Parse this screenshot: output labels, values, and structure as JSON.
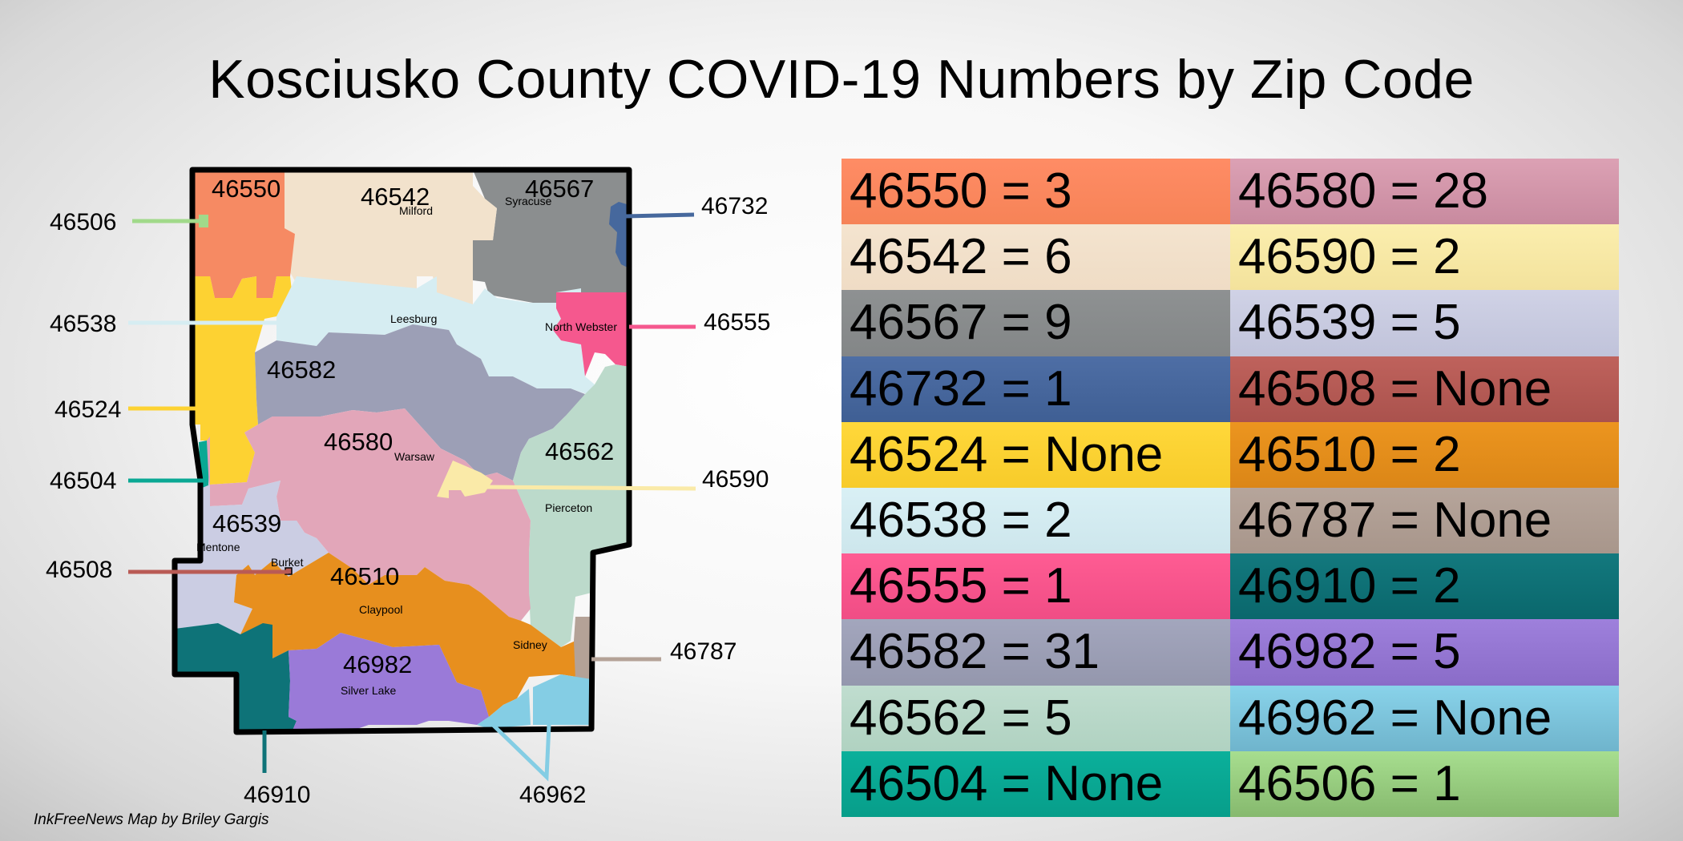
{
  "title": "Kosciusko County COVID-19 Numbers by Zip Code",
  "credit": "InkFreeNews Map by Briley Gargis",
  "map": {
    "inside_zips": {
      "46550": "46550",
      "46542": "46542",
      "46567": "46567",
      "46582": "46582",
      "46580": "46580",
      "46562": "46562",
      "46539": "46539",
      "46510": "46510",
      "46982": "46982"
    },
    "outside_zips": {
      "46506": "46506",
      "46538": "46538",
      "46524": "46524",
      "46504": "46504",
      "46508": "46508",
      "46910": "46910",
      "46962": "46962",
      "46787": "46787",
      "46590": "46590",
      "46555": "46555",
      "46732": "46732"
    },
    "towns": {
      "milford": "Milford",
      "syracuse": "Syracuse",
      "leesburg": "Leesburg",
      "north_webster": "North Webster",
      "warsaw": "Warsaw",
      "pierceton": "Pierceton",
      "mentone": "Mentone",
      "burket": "Burket",
      "claypool": "Claypool",
      "sidney": "Sidney",
      "silver_lake": "Silver Lake"
    },
    "colors": {
      "46550": "#f68a63",
      "46542": "#f2e2cc",
      "46567": "#8b8e8f",
      "46732": "#46689d",
      "46524": "#fdd232",
      "46538": "#d6edf2",
      "46555": "#f5588e",
      "46582": "#9c9fb6",
      "46562": "#bcdacb",
      "46504": "#0aa894",
      "46580": "#e2a6b9",
      "46590": "#faeaa8",
      "46539": "#cbcde3",
      "46508": "#b95b55",
      "46510": "#e78f1e",
      "46787": "#b4a297",
      "46910": "#0e7378",
      "46982": "#9a7ad8",
      "46962": "#84cde4",
      "46506": "#a1d98a"
    }
  },
  "legend": [
    {
      "text": "46550 = 3",
      "color_top": "#ff8c65",
      "color_bottom": "#f68357"
    },
    {
      "text": "46542 = 6",
      "color_top": "#f4e4cf",
      "color_bottom": "#efdcc5"
    },
    {
      "text": "46567 = 9",
      "color_top": "#8e9192",
      "color_bottom": "#838687"
    },
    {
      "text": "46732 = 1",
      "color_top": "#4e6ea5",
      "color_bottom": "#3f5f94"
    },
    {
      "text": "46524 = None",
      "color_top": "#ffd83a",
      "color_bottom": "#f7cb2a"
    },
    {
      "text": "46538 = 2",
      "color_top": "#d9f0f5",
      "color_bottom": "#cde6ec"
    },
    {
      "text": "46555 = 1",
      "color_top": "#ff5c93",
      "color_bottom": "#f04d85"
    },
    {
      "text": "46582 = 31",
      "color_top": "#a3a6bd",
      "color_bottom": "#9497ad"
    },
    {
      "text": "46562 = 5",
      "color_top": "#c0ddcf",
      "color_bottom": "#b0d2c1"
    },
    {
      "text": "46504 = None",
      "color_top": "#0bb09b",
      "color_bottom": "#079e8a"
    },
    {
      "text": "46580 = 28",
      "color_top": "#dca1b4",
      "color_bottom": "#c88a9f"
    },
    {
      "text": "46590 = 2",
      "color_top": "#fbeeae",
      "color_bottom": "#f3e29c"
    },
    {
      "text": "46539 = 5",
      "color_top": "#d0d2e6",
      "color_bottom": "#c0c3da"
    },
    {
      "text": "46508 = None",
      "color_top": "#bf625c",
      "color_bottom": "#aa524d"
    },
    {
      "text": "46510 = 2",
      "color_top": "#ec951f",
      "color_bottom": "#db8617"
    },
    {
      "text": "46787 = None",
      "color_top": "#b6a59b",
      "color_bottom": "#a8968b"
    },
    {
      "text": "46910 = 2",
      "color_top": "#13797e",
      "color_bottom": "#0a676c"
    },
    {
      "text": "46982 = 5",
      "color_top": "#9e80dc",
      "color_bottom": "#8a6cc8"
    },
    {
      "text": "46962 = None",
      "color_top": "#89d3ea",
      "color_bottom": "#6fb4cc"
    },
    {
      "text": "46506 = 1",
      "color_top": "#a7de8f",
      "color_bottom": "#86b96e"
    }
  ]
}
